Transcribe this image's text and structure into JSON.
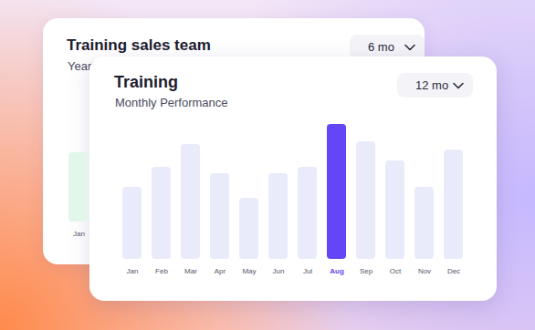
{
  "chart_data": [
    {
      "type": "bar",
      "title": "Training sales team",
      "subtitle": "Year'",
      "annotations": [
        "6 mo"
      ],
      "categories": [
        "Jan"
      ],
      "values": [
        78
      ],
      "color": "#e2f7ea",
      "ylim": [
        0,
        150
      ],
      "tick_labels": "x"
    },
    {
      "type": "bar",
      "title": "Training",
      "subtitle": "Monthly Performance",
      "annotations": [
        "12 mo"
      ],
      "categories": [
        "Jan",
        "Feb",
        "Mar",
        "Apr",
        "May",
        "Jun",
        "Jul",
        "Aug",
        "Sep",
        "Oct",
        "Nov",
        "Dec"
      ],
      "values": [
        79,
        101,
        126,
        94,
        67,
        94,
        101,
        148,
        129,
        108,
        79,
        120
      ],
      "colors": [
        "#e9ebfb",
        "#e9ebfb",
        "#e9ebfb",
        "#e9ebfb",
        "#e9ebfb",
        "#e9ebfb",
        "#e9ebfb",
        "#6546f5",
        "#e9ebfb",
        "#e9ebfb",
        "#e9ebfb",
        "#e9ebfb"
      ],
      "ylim": [
        0,
        150
      ],
      "tick_labels": "x"
    }
  ]
}
